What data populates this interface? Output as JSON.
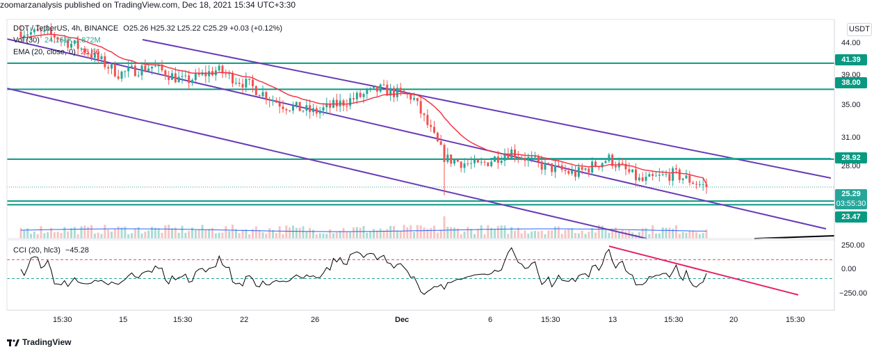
{
  "publisher_line": "zoomarzanalysis published on TradingView.com, Dec 18, 2021 15:34 UTC+3:30",
  "legend": {
    "symbol": "DOT / TetherUS, 4h, BINANCE",
    "ohlc": "O25.26 H25.32 L25.22 C25.29 +0.03 (+0.12%)",
    "vol_label": "Vol (30)",
    "vol_values": "24.161K 1.872M",
    "ema_label": "EMA (20, close, 0)",
    "ema_value": "25.66",
    "cci_label": "CCI (20, hlc3)",
    "cci_value": "−45.28"
  },
  "currency": "USDT",
  "price_axis": {
    "ticks": [
      "44.00",
      "39.00",
      "35.00",
      "31.00",
      "28.00"
    ],
    "tags": [
      {
        "label": "41.39",
        "value": 41.39
      },
      {
        "label": "38.00",
        "value": 38.0
      },
      {
        "label": "28.92",
        "value": 28.92
      },
      {
        "label": "23.47",
        "value": 23.47
      }
    ],
    "last_price": "25.29",
    "countdown": "03:55:30"
  },
  "cci_axis": {
    "ticks": [
      "250.00",
      "0.00",
      "−250.00"
    ],
    "levels": [
      100,
      -100
    ]
  },
  "time_axis": [
    "15:30",
    "15",
    "15:30",
    "22",
    "26",
    "Dec",
    "6",
    "15:30",
    "13",
    "15:30",
    "20",
    "15:30"
  ],
  "colors": {
    "up": "#26a69a",
    "down": "#ef5350",
    "ema": "#f23645",
    "channel": "#673ab7",
    "level": "#089981",
    "cci": "#000000",
    "cci_trend": "#e91e63",
    "vol_ma": "#2962ff"
  },
  "chart_data": {
    "type": "candlestick",
    "symbol": "DOT / TetherUS",
    "timeframe": "4h",
    "price_range": [
      23.0,
      47.0
    ],
    "horizontal_levels": [
      41.39,
      38.0,
      28.92,
      23.47,
      23.0
    ],
    "price_path": [
      {
        "t": "Nov 12",
        "p": 45.5
      },
      {
        "t": "Nov 14",
        "p": 45.0
      },
      {
        "t": "Nov 16",
        "p": 43.0
      },
      {
        "t": "Nov 17",
        "p": 40.0
      },
      {
        "t": "Nov 19",
        "p": 41.0
      },
      {
        "t": "Nov 20",
        "p": 39.0
      },
      {
        "t": "Nov 22",
        "p": 40.5
      },
      {
        "t": "Nov 24",
        "p": 38.5
      },
      {
        "t": "Nov 26",
        "p": 36.0
      },
      {
        "t": "Nov 27",
        "p": 35.0
      },
      {
        "t": "Nov 29",
        "p": 36.5
      },
      {
        "t": "Dec 1",
        "p": 38.0
      },
      {
        "t": "Dec 3",
        "p": 37.0
      },
      {
        "t": "Dec 4",
        "p": 29.0
      },
      {
        "t": "Dec 5",
        "p": 28.0
      },
      {
        "t": "Dec 7",
        "p": 30.0
      },
      {
        "t": "Dec 9",
        "p": 28.0
      },
      {
        "t": "Dec 11",
        "p": 27.0
      },
      {
        "t": "Dec 13",
        "p": 29.0
      },
      {
        "t": "Dec 14",
        "p": 26.0
      },
      {
        "t": "Dec 16",
        "p": 27.0
      },
      {
        "t": "Dec 18",
        "p": 25.29
      }
    ],
    "ema": {
      "name": "EMA (20, close, 0)",
      "last": 25.66
    },
    "cci": {
      "name": "CCI (20, hlc3)",
      "last": -45.28,
      "range": [
        -250,
        250
      ]
    }
  }
}
